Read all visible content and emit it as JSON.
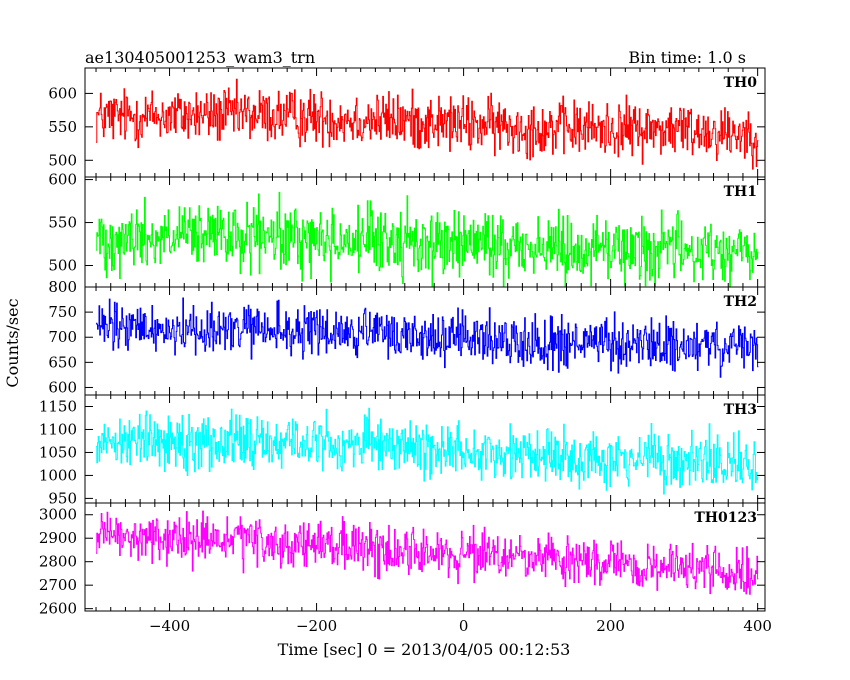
{
  "chart_data": {
    "type": "line",
    "title": "ae130405001253_wam3_trn",
    "bin_time_label": "Bin time: 1.0 s",
    "xlabel": "Time [sec] 0 = 2013/04/05 00:12:53",
    "ylabel": "Counts/sec",
    "xlim": [
      -515,
      410
    ],
    "x_range": [
      -500,
      400
    ],
    "x_step": 1,
    "x_ticks": [
      -400,
      -200,
      0,
      200,
      400
    ],
    "grid": false,
    "series": [
      {
        "name": "TH0",
        "color": "#ff0000",
        "ylim": [
          475,
          638
        ],
        "y_ticks": [
          500,
          550,
          600
        ],
        "trend_points": [
          [
            -500,
            565
          ],
          [
            -300,
            568
          ],
          [
            -100,
            560
          ],
          [
            100,
            548
          ],
          [
            300,
            546
          ],
          [
            400,
            540
          ]
        ],
        "noise_amplitude": 62
      },
      {
        "name": "TH1",
        "color": "#00ff00",
        "ylim": [
          475,
          603
        ],
        "y_ticks": [
          500,
          550,
          600
        ],
        "trend_points": [
          [
            -500,
            532
          ],
          [
            -300,
            533
          ],
          [
            -100,
            528
          ],
          [
            100,
            522
          ],
          [
            300,
            518
          ],
          [
            400,
            514
          ]
        ],
        "noise_amplitude": 58
      },
      {
        "name": "TH2",
        "color": "#0000ff",
        "ylim": [
          585,
          800
        ],
        "y_ticks": [
          600,
          650,
          700,
          750,
          800
        ],
        "trend_points": [
          [
            -500,
            718
          ],
          [
            -300,
            715
          ],
          [
            -100,
            705
          ],
          [
            100,
            690
          ],
          [
            300,
            682
          ],
          [
            400,
            676
          ]
        ],
        "noise_amplitude": 75
      },
      {
        "name": "TH3",
        "color": "#00ffff",
        "ylim": [
          940,
          1175
        ],
        "y_ticks": [
          950,
          1000,
          1050,
          1100,
          1150
        ],
        "trend_points": [
          [
            -500,
            1078
          ],
          [
            -300,
            1075
          ],
          [
            -100,
            1065
          ],
          [
            100,
            1045
          ],
          [
            300,
            1030
          ],
          [
            400,
            1020
          ]
        ],
        "noise_amplitude": 90
      },
      {
        "name": "TH0123",
        "color": "#ff00ff",
        "ylim": [
          2590,
          3050
        ],
        "y_ticks": [
          2600,
          2700,
          2800,
          2900,
          3000
        ],
        "trend_points": [
          [
            -500,
            2905
          ],
          [
            -300,
            2885
          ],
          [
            -100,
            2850
          ],
          [
            100,
            2810
          ],
          [
            300,
            2770
          ],
          [
            400,
            2740
          ]
        ],
        "noise_amplitude": 150
      }
    ]
  }
}
